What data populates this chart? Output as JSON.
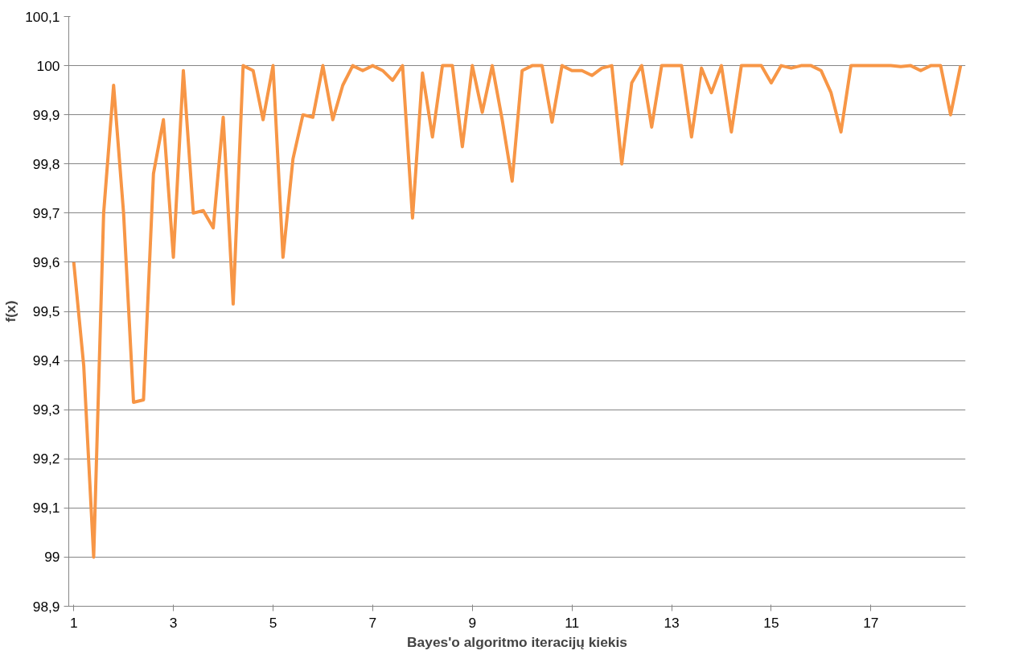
{
  "chart_data": {
    "type": "line",
    "xlabel": "Bayes'o algoritmo iteracijų kiekis",
    "ylabel": "f(x)",
    "x": [
      1.0,
      1.2,
      1.4,
      1.6,
      1.8,
      2.0,
      2.2,
      2.4,
      2.6,
      2.8,
      3.0,
      3.2,
      3.4,
      3.6,
      3.8,
      4.0,
      4.2,
      4.4,
      4.6,
      4.8,
      5.0,
      5.2,
      5.4,
      5.6,
      5.8,
      6.0,
      6.2,
      6.4,
      6.6,
      6.8,
      7.0,
      7.2,
      7.4,
      7.6,
      7.8,
      8.0,
      8.2,
      8.4,
      8.6,
      8.8,
      9.0,
      9.2,
      9.4,
      9.6,
      9.8,
      10.0,
      10.2,
      10.4,
      10.6,
      10.8,
      11.0,
      11.2,
      11.4,
      11.6,
      11.8,
      12.0,
      12.2,
      12.4,
      12.6,
      12.8,
      13.0,
      13.2,
      13.4,
      13.6,
      13.8,
      14.0,
      14.2,
      14.4,
      14.6,
      14.8,
      15.0,
      15.2,
      15.4,
      15.6,
      15.8,
      16.0,
      16.2,
      16.4,
      16.6,
      16.8,
      17.0,
      17.2,
      17.4,
      17.6,
      17.8,
      18.0,
      18.2,
      18.4,
      18.6,
      18.8
    ],
    "series": [
      {
        "color": "#f79646",
        "values": [
          99.6,
          99.39,
          99.0,
          99.7,
          99.96,
          99.7,
          99.315,
          99.32,
          99.78,
          99.89,
          99.61,
          99.99,
          99.7,
          99.705,
          99.67,
          99.895,
          99.515,
          100.0,
          99.99,
          99.89,
          100.0,
          99.61,
          99.81,
          99.9,
          99.895,
          100.0,
          99.89,
          99.96,
          100.0,
          99.99,
          100.0,
          99.99,
          99.97,
          100.0,
          99.69,
          99.985,
          99.855,
          100.0,
          100.0,
          99.835,
          100.0,
          99.905,
          100.0,
          99.89,
          99.765,
          99.99,
          100.0,
          100.0,
          99.885,
          100.0,
          99.99,
          99.99,
          99.98,
          99.995,
          100.0,
          99.8,
          99.965,
          100.0,
          99.875,
          100.0,
          100.0,
          100.0,
          99.855,
          99.995,
          99.945,
          100.0,
          99.865,
          100.0,
          100.0,
          100.0,
          99.965,
          100.0,
          99.995,
          100.0,
          100.0,
          99.99,
          99.945,
          99.865,
          100.0,
          100.0,
          100.0,
          100.0,
          100.0,
          99.998,
          100.0,
          99.99,
          100.0,
          100.0,
          99.9,
          100.0
        ]
      }
    ],
    "xlim": [
      0.9,
      18.9
    ],
    "xticks": [
      1,
      3,
      5,
      7,
      9,
      11,
      13,
      15,
      17
    ],
    "ylim": [
      98.9,
      100.1
    ],
    "yticks": [
      {
        "value": 98.9,
        "label": "98,9"
      },
      99,
      {
        "value": 99.1,
        "label": "99,1"
      },
      {
        "value": 99.2,
        "label": "99,2"
      },
      {
        "value": 99.3,
        "label": "99,3"
      },
      {
        "value": 99.4,
        "label": "99,4"
      },
      {
        "value": 99.5,
        "label": "99,5"
      },
      {
        "value": 99.6,
        "label": "99,6"
      },
      {
        "value": 99.7,
        "label": "99,7"
      },
      {
        "value": 99.8,
        "label": "99,8"
      },
      {
        "value": 99.9,
        "label": "99,9"
      },
      100,
      {
        "value": 100.1,
        "label": "100,1"
      }
    ],
    "grid": "y",
    "marker": "none",
    "line_style": "solid"
  }
}
